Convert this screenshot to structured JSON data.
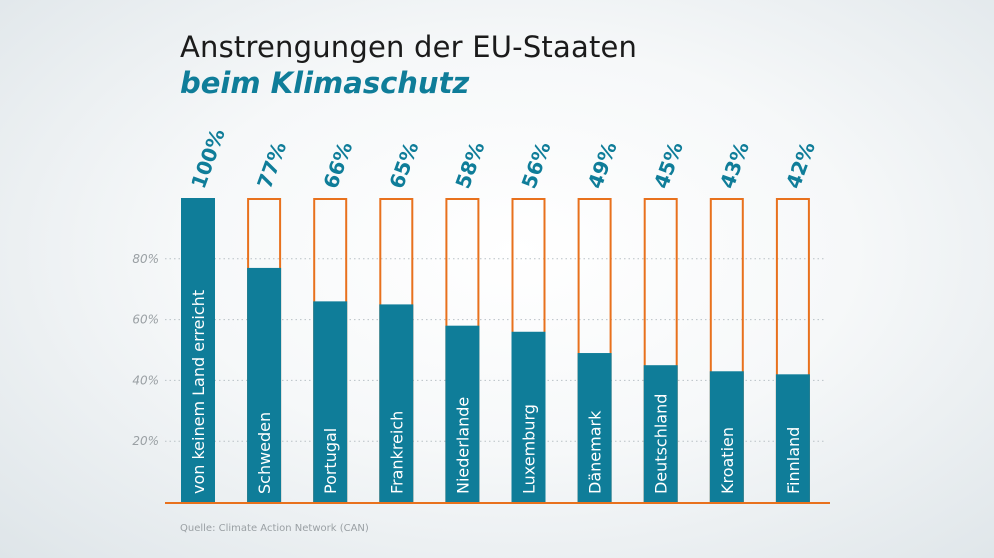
{
  "header": {
    "title": "Anstrengungen der EU-Staaten",
    "subtitle": "beim Klimaschutz"
  },
  "source": "Quelle: Climate Action Network (CAN)",
  "colors": {
    "bar_fill": "#0f7d99",
    "bar_outline": "#e8711d",
    "baseline": "#e8711d",
    "value_label": "#0f7d99",
    "tick_label": "#9aa0a4",
    "bar_label": "#ffffff"
  },
  "chart_data": {
    "type": "bar",
    "categories": [
      "von keinem Land erreicht",
      "Schweden",
      "Portugal",
      "Frankreich",
      "Niederlande",
      "Luxemburg",
      "Dänemark",
      "Deutschland",
      "Kroatien",
      "Finnland"
    ],
    "values": [
      100,
      77,
      66,
      65,
      58,
      56,
      49,
      45,
      43,
      42
    ],
    "value_labels": [
      "100%",
      "77%",
      "66%",
      "65%",
      "58%",
      "56%",
      "49%",
      "45%",
      "43%",
      "42%"
    ],
    "yticks": [
      20,
      40,
      60,
      80
    ],
    "ytick_labels": [
      "20%",
      "40%",
      "60%",
      "80%"
    ],
    "ylim": [
      0,
      100
    ],
    "grid": true,
    "outline_to_max": true
  }
}
